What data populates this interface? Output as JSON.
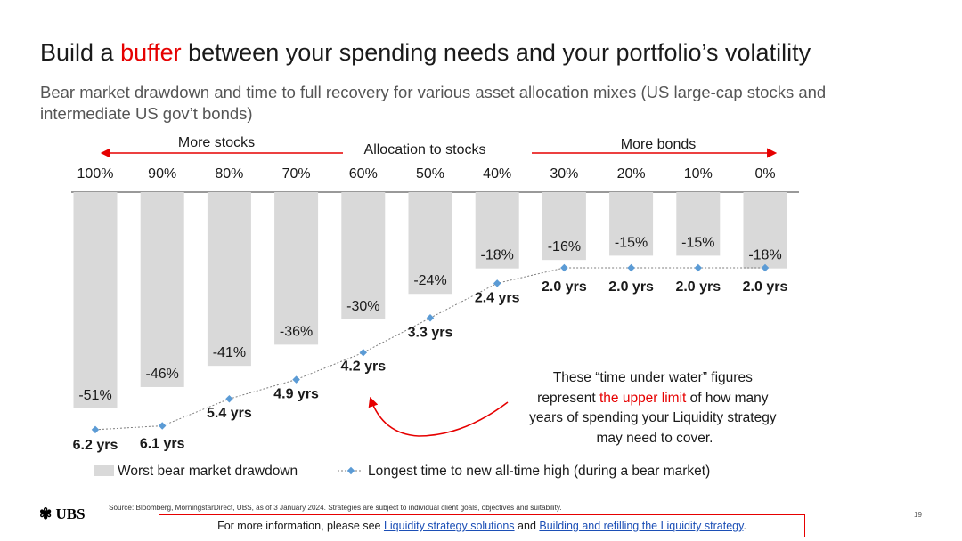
{
  "slide": {
    "title_pre": "Build a ",
    "title_accent": "buffer",
    "title_post": " between your spending needs and your portfolio’s volatility",
    "subtitle": "Bear market drawdown and time to full recovery for various asset allocation mixes (US large-cap stocks and intermediate US gov’t bonds)",
    "logo_text": "UBS",
    "source": "Source: Bloomberg, MorningstarDirect, UBS, as of 3 January 2024. Strategies are subject to individual client goals, objectives and suitability.",
    "info_pre": "For more information, please see ",
    "link1": "Liquidity strategy solutions",
    "info_mid": " and ",
    "link2": "Building and refilling the Liquidity strategy",
    "info_post": ".",
    "page_number": "19",
    "accent_color": "#e60000",
    "link_color": "#1c4fb6"
  },
  "chart_data": {
    "type": "bar",
    "header": {
      "left_label": "More stocks",
      "center_label": "Allocation to stocks",
      "right_label": "More bonds"
    },
    "categories": [
      "100%",
      "90%",
      "80%",
      "70%",
      "60%",
      "50%",
      "40%",
      "30%",
      "20%",
      "10%",
      "0%"
    ],
    "series": [
      {
        "name": "Worst bear market drawdown",
        "kind": "bar",
        "color": "#d9d9d9",
        "values": [
          -51,
          -46,
          -41,
          -36,
          -30,
          -24,
          -18,
          -16,
          -15,
          -15,
          -18
        ],
        "labels": [
          "-51%",
          "-46%",
          "-41%",
          "-36%",
          "-30%",
          "-24%",
          "-18%",
          "-16%",
          "-15%",
          "-15%",
          "-18%"
        ]
      },
      {
        "name": "Longest time to new all-time high (during a bear market)",
        "kind": "line",
        "color": "#5b9bd5",
        "line_color": "#7f7f7f",
        "values": [
          6.2,
          6.1,
          5.4,
          4.9,
          4.2,
          3.3,
          2.4,
          2.0,
          2.0,
          2.0,
          2.0
        ],
        "labels": [
          "6.2 yrs",
          "6.1 yrs",
          "5.4 yrs",
          "4.9 yrs",
          "4.2 yrs",
          "3.3 yrs",
          "2.4 yrs",
          "2.0 yrs",
          "2.0 yrs",
          "2.0 yrs",
          "2.0 yrs"
        ]
      }
    ],
    "annotation": {
      "pre": "These “time under water” figures represent ",
      "highlight": "the upper limit",
      "post": " of how many years of spending your Liquidity strategy may need to cover."
    },
    "legend_position": "bottom"
  }
}
